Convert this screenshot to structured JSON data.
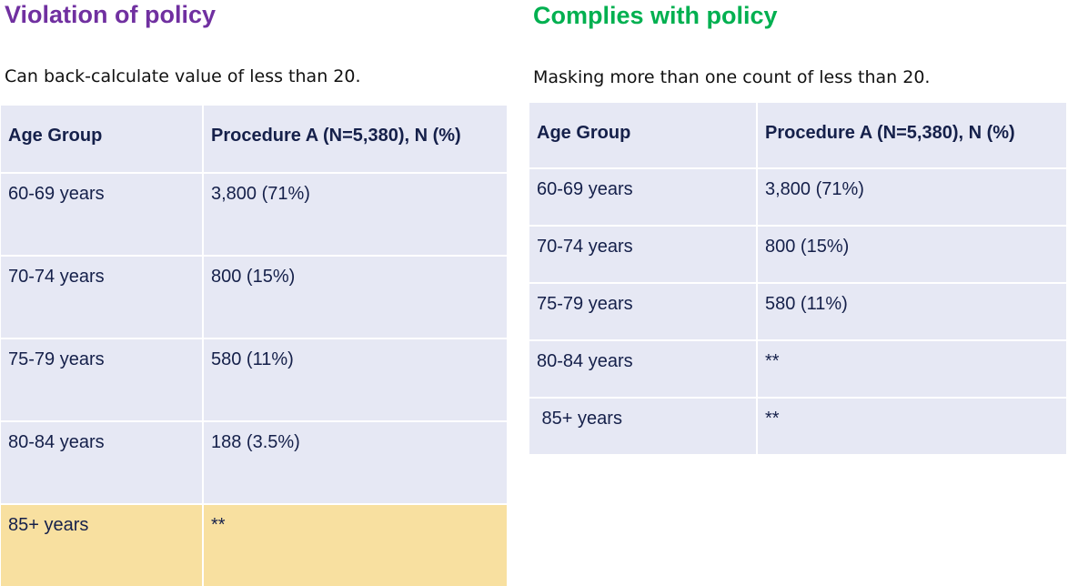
{
  "colors": {
    "violation_title": "#7030a0",
    "complies_title": "#00b050",
    "cell_background": "#e6e8f4",
    "highlight_background": "#f8e0a0",
    "table_text": "#15204a"
  },
  "left": {
    "title": "Violation of policy",
    "subtitle": "Can back-calculate value of less than 20.",
    "table": {
      "headers": [
        "Age Group",
        "Procedure A (N=5,380), N (%)"
      ],
      "rows": [
        [
          "60-69 years",
          "3,800 (71%)"
        ],
        [
          "70-74 years",
          "800 (15%)"
        ],
        [
          "75-79 years",
          "580 (11%)"
        ],
        [
          "80-84 years",
          "188 (3.5%)"
        ],
        [
          "85+ years",
          "**"
        ]
      ]
    }
  },
  "right": {
    "title": "Complies with policy",
    "subtitle": "Masking more than one count of less than 20.",
    "table": {
      "headers": [
        "Age Group",
        "Procedure A (N=5,380), N (%)"
      ],
      "rows": [
        [
          "60-69 years",
          "3,800 (71%)"
        ],
        [
          "70-74 years",
          "800 (15%)"
        ],
        [
          "75-79 years",
          "580 (11%)"
        ],
        [
          "80-84 years",
          "**"
        ],
        [
          " 85+ years",
          "**"
        ]
      ]
    }
  }
}
